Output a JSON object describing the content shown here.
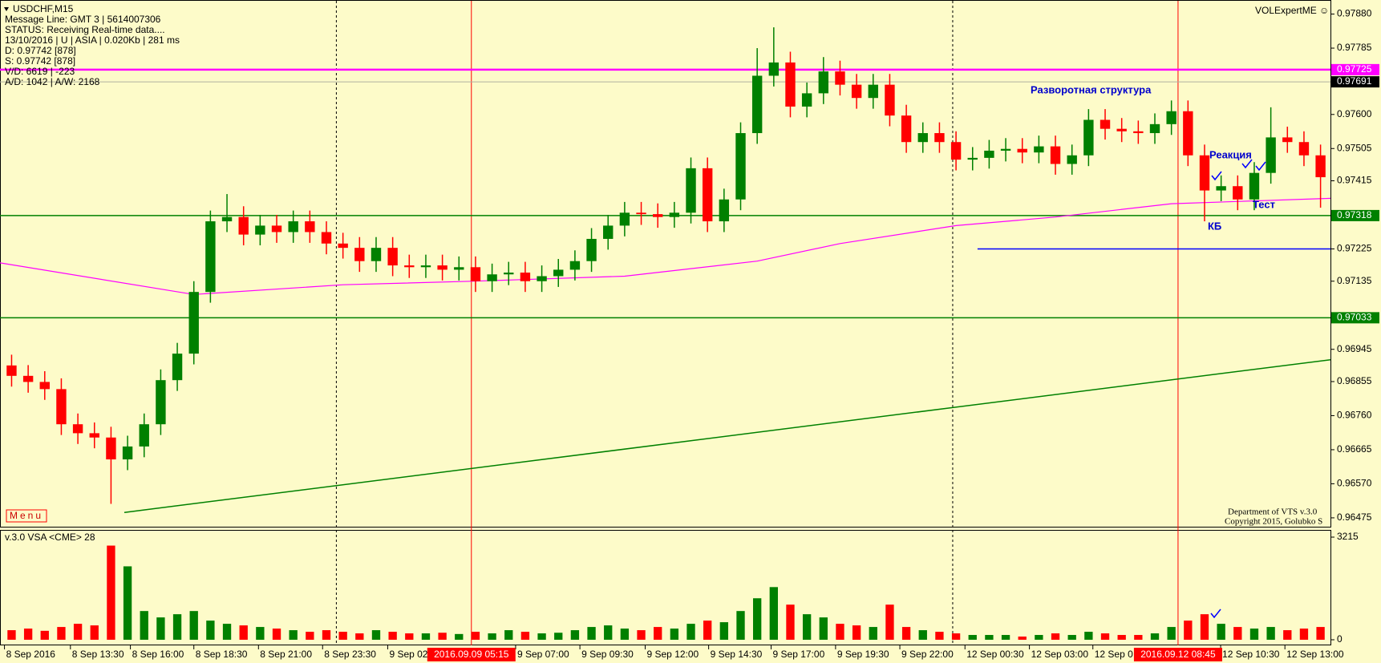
{
  "chart_data": {
    "type": "candlestick",
    "symbol": "USDCHF,M15",
    "info_lines": [
      "Message Line: GMT 3 | 5614007306",
      "STATUS:  Receiving Real-time data....",
      "13/10/2016 | U | ASIA | 0.020Kb | 281 ms",
      "D: 0.97742  [878]",
      "S: 0.97742  [878]",
      "V/D: 6619  | -223",
      "A/D: 1042 | A/W: 2168"
    ],
    "brand": "VOLExpertME ☺",
    "menu": "Menu",
    "credits": [
      "Department of VTS  v.3.0",
      "Copyright 2015, Golubko S"
    ],
    "annotations": [
      "Разворотная структура",
      "Реакция",
      "Тест",
      "КБ"
    ],
    "up_color": "#008000",
    "down_color": "#ff0000",
    "open": [
      0.969,
      0.96871,
      0.96854,
      0.96834,
      0.96736,
      0.96711,
      0.96699,
      0.96638,
      0.96674,
      0.96736,
      0.96859,
      0.96933,
      0.97105,
      0.97302,
      0.97314,
      0.97265,
      0.9729,
      0.97272,
      0.97302,
      0.97272,
      0.9724,
      0.97228,
      0.97191,
      0.97228,
      0.97179,
      0.97174,
      0.97179,
      0.97167,
      0.97174,
      0.97135,
      0.97154,
      0.97159,
      0.97135,
      0.97149,
      0.97167,
      0.97191,
      0.97253,
      0.9729,
      0.97326,
      0.97322,
      0.97314,
      0.97326,
      0.9745,
      0.97302,
      0.97363,
      0.97548,
      0.97708,
      0.97745,
      0.97622,
      0.97659,
      0.9772,
      0.97683,
      0.97646,
      0.97683,
      0.97597,
      0.97523,
      0.97548,
      0.97523,
      0.97474,
      0.97479,
      0.97499,
      0.97504,
      0.97494,
      0.97511,
      0.97462,
      0.97486,
      0.97585,
      0.9756,
      0.97553,
      0.97548,
      0.97573,
      0.97609,
      0.97486,
      0.97388,
      0.974,
      0.97363,
      0.97437,
      0.97536,
      0.97523,
      0.97486
    ],
    "high": [
      0.9693,
      0.96901,
      0.96884,
      0.96864,
      0.96766,
      0.96741,
      0.96729,
      0.96704,
      0.96766,
      0.96889,
      0.96963,
      0.97135,
      0.97332,
      0.97378,
      0.97344,
      0.9732,
      0.9732,
      0.97332,
      0.97332,
      0.97302,
      0.9727,
      0.97258,
      0.97258,
      0.97258,
      0.97209,
      0.97209,
      0.97209,
      0.97204,
      0.97204,
      0.97184,
      0.97189,
      0.97189,
      0.97179,
      0.97197,
      0.97221,
      0.97283,
      0.9732,
      0.97356,
      0.97356,
      0.97352,
      0.97356,
      0.9748,
      0.9748,
      0.97393,
      0.97578,
      0.97785,
      0.97843,
      0.97775,
      0.97689,
      0.9776,
      0.9775,
      0.97713,
      0.97713,
      0.97713,
      0.97627,
      0.97578,
      0.97578,
      0.97553,
      0.97509,
      0.97529,
      0.97534,
      0.97534,
      0.97541,
      0.97541,
      0.97516,
      0.97615,
      0.97615,
      0.9759,
      0.97583,
      0.97603,
      0.97639,
      0.97639,
      0.97516,
      0.9743,
      0.9743,
      0.97467,
      0.9762,
      0.97566,
      0.97553,
      0.97516
    ],
    "low": [
      0.96841,
      0.96824,
      0.96804,
      0.96706,
      0.96681,
      0.96669,
      0.96514,
      0.96608,
      0.96644,
      0.96706,
      0.96829,
      0.96903,
      0.97075,
      0.97272,
      0.97235,
      0.97235,
      0.97242,
      0.97242,
      0.97242,
      0.9721,
      0.97198,
      0.97161,
      0.97161,
      0.97149,
      0.97144,
      0.97144,
      0.97137,
      0.97137,
      0.97105,
      0.97105,
      0.97124,
      0.97105,
      0.97105,
      0.97119,
      0.97137,
      0.97161,
      0.97223,
      0.9726,
      0.97292,
      0.97284,
      0.97284,
      0.97296,
      0.97272,
      0.97272,
      0.97333,
      0.97518,
      0.97678,
      0.97592,
      0.97592,
      0.97629,
      0.97653,
      0.97616,
      0.97616,
      0.97567,
      0.97493,
      0.97493,
      0.97493,
      0.97444,
      0.97444,
      0.97449,
      0.97469,
      0.97464,
      0.97464,
      0.97432,
      0.97432,
      0.97456,
      0.9753,
      0.97523,
      0.97518,
      0.97518,
      0.97543,
      0.97456,
      0.97302,
      0.97358,
      0.97333,
      0.97333,
      0.97407,
      0.97493,
      0.97456,
      0.9734
    ],
    "close": [
      0.96871,
      0.96854,
      0.96834,
      0.96736,
      0.96711,
      0.96699,
      0.96638,
      0.96674,
      0.96736,
      0.96859,
      0.96933,
      0.97105,
      0.97302,
      0.97314,
      0.97265,
      0.9729,
      0.97272,
      0.97302,
      0.97272,
      0.9724,
      0.97228,
      0.97191,
      0.97228,
      0.97179,
      0.97174,
      0.97179,
      0.97167,
      0.97174,
      0.97135,
      0.97154,
      0.97159,
      0.97135,
      0.97149,
      0.97167,
      0.97191,
      0.97253,
      0.9729,
      0.97326,
      0.97322,
      0.97314,
      0.97326,
      0.9745,
      0.97302,
      0.97363,
      0.97548,
      0.97708,
      0.97745,
      0.97622,
      0.97659,
      0.9772,
      0.97683,
      0.97646,
      0.97683,
      0.97597,
      0.97523,
      0.97548,
      0.97523,
      0.97474,
      0.97479,
      0.97499,
      0.97504,
      0.97494,
      0.97511,
      0.97462,
      0.97486,
      0.97585,
      0.9756,
      0.97553,
      0.97548,
      0.97573,
      0.97609,
      0.97486,
      0.97388,
      0.974,
      0.97363,
      0.97437,
      0.97536,
      0.97523,
      0.97486,
      0.97425
    ],
    "xlim": [
      -0.7,
      79.6
    ],
    "xticks": [
      {
        "value": -0.43,
        "label": "8 Sep 2016"
      },
      {
        "value": 3.55,
        "label": "8 Sep 13:30"
      },
      {
        "value": 7.17,
        "label": "8 Sep 16:00"
      },
      {
        "value": 11.0,
        "label": "8 Sep 18:30"
      },
      {
        "value": 14.9,
        "label": "8 Sep 21:00"
      },
      {
        "value": 18.77,
        "label": "8 Sep 23:30"
      },
      {
        "value": 22.7,
        "label": "9 Sep 02"
      },
      {
        "value": 30.42,
        "label": "9 Sep 07:00"
      },
      {
        "value": 34.3,
        "label": "9 Sep 09:30"
      },
      {
        "value": 38.24,
        "label": "9 Sep 12:00"
      },
      {
        "value": 42.07,
        "label": "9 Sep 14:30"
      },
      {
        "value": 45.84,
        "label": "9 Sep 17:00"
      },
      {
        "value": 49.73,
        "label": "9 Sep 19:30"
      },
      {
        "value": 53.61,
        "label": "9 Sep 22:00"
      },
      {
        "value": 57.54,
        "label": "12 Sep 00:30"
      },
      {
        "value": 61.43,
        "label": "12 Sep 03:00"
      },
      {
        "value": 65.26,
        "label": "12 Sep 0"
      },
      {
        "value": 72.97,
        "label": "12 Sep 10:30"
      },
      {
        "value": 76.85,
        "label": "12 Sep 13:00"
      }
    ],
    "ylim": [
      0.96448,
      0.97917
    ],
    "yticks": [
      {
        "value": 0.9788,
        "label": "0.97880"
      },
      {
        "value": 0.97785,
        "label": "0.97785"
      },
      {
        "value": 0.976,
        "label": "0.97600"
      },
      {
        "value": 0.97505,
        "label": "0.97505"
      },
      {
        "value": 0.97415,
        "label": "0.97415"
      },
      {
        "value": 0.97225,
        "label": "0.97225"
      },
      {
        "value": 0.97135,
        "label": "0.97135"
      },
      {
        "value": 0.96945,
        "label": "0.96945"
      },
      {
        "value": 0.96855,
        "label": "0.96855"
      },
      {
        "value": 0.9676,
        "label": "0.96760"
      },
      {
        "value": 0.96665,
        "label": "0.96665"
      },
      {
        "value": 0.9657,
        "label": "0.96570"
      },
      {
        "value": 0.96475,
        "label": "0.96475"
      }
    ],
    "levels": [
      {
        "value": 0.97725,
        "label": "0.97725",
        "color": "#ff00ff"
      },
      {
        "value": 0.97691,
        "label": "0.97691",
        "color": "#000000"
      },
      {
        "value": 0.97318,
        "label": "0.97318",
        "color": "#008000"
      },
      {
        "value": 0.97033,
        "label": "0.97033",
        "color": "#008000"
      }
    ],
    "vlines": [
      {
        "x": 19.6,
        "style": "dotted",
        "color": "#000000"
      },
      {
        "x": 27.75,
        "style": "solid",
        "color": "#ff0000",
        "label": "2016.09.09 05:15"
      },
      {
        "x": 56.8,
        "style": "dotted",
        "color": "#000000"
      },
      {
        "x": 70.4,
        "style": "solid",
        "color": "#ff0000",
        "label": "2016.09.12 08:45"
      }
    ],
    "ma": {
      "color": "#ff00ff",
      "x": [
        -0.7,
        11,
        20,
        28,
        37,
        45,
        50,
        57,
        63,
        70,
        79.6
      ],
      "values": [
        0.97186,
        0.97098,
        0.97125,
        0.97135,
        0.97149,
        0.97191,
        0.9724,
        0.9729,
        0.97314,
        0.97351,
        0.97366
      ]
    },
    "lines": [
      {
        "color": "#008000",
        "x": [
          6.8,
          79.6
        ],
        "values": [
          0.9649,
          0.96916
        ]
      },
      {
        "color": "#0000ff",
        "x": [
          58.3,
          79.6
        ],
        "values": [
          0.97225,
          0.97225
        ]
      }
    ],
    "volume": {
      "title": "v.3.0 VSA <CME> 28",
      "ylim": [
        0,
        3215
      ],
      "yticks": [
        3215,
        0
      ],
      "values": [
        300,
        350,
        280,
        400,
        500,
        450,
        2950,
        2300,
        900,
        700,
        800,
        900,
        600,
        500,
        450,
        400,
        350,
        300,
        250,
        300,
        250,
        200,
        300,
        250,
        200,
        200,
        220,
        180,
        250,
        200,
        300,
        250,
        200,
        220,
        300,
        400,
        450,
        350,
        300,
        400,
        350,
        500,
        600,
        550,
        900,
        1300,
        1650,
        1100,
        800,
        700,
        500,
        450,
        400,
        1100,
        400,
        300,
        250,
        200,
        150,
        150,
        150,
        100,
        150,
        200,
        150,
        250,
        200,
        150,
        150,
        200,
        400,
        600,
        800,
        500,
        400,
        350,
        400,
        300,
        350,
        400
      ]
    }
  }
}
